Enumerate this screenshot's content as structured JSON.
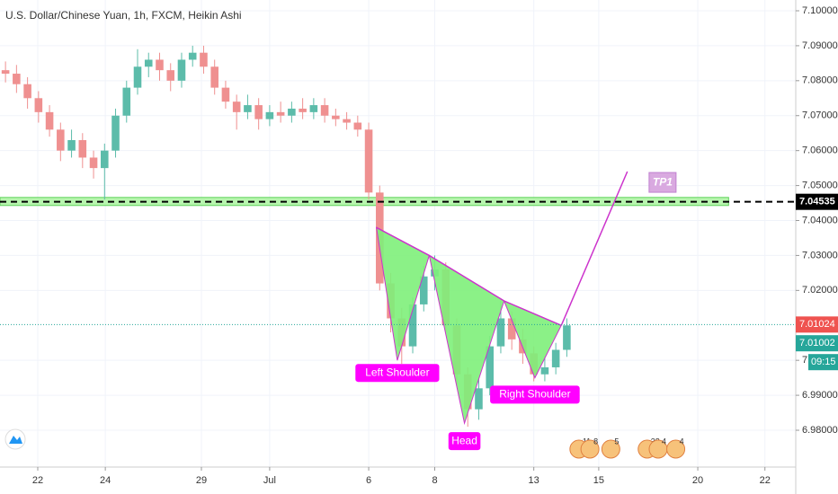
{
  "chart_data": {
    "type": "candlestick",
    "title": "U.S. Dollar/Chinese Yuan, 1h, FXCM, Heikin Ashi",
    "up_color": "#5cbcaa",
    "down_color": "#ef9090",
    "grid": true,
    "xlim": [
      0,
      72.3
    ],
    "xticks": [
      {
        "value": 3.43,
        "label": "22"
      },
      {
        "value": 9.57,
        "label": "24"
      },
      {
        "value": 18.3,
        "label": "29"
      },
      {
        "value": 24.5,
        "label": "Jul"
      },
      {
        "value": 33.5,
        "label": "6"
      },
      {
        "value": 39.5,
        "label": "8"
      },
      {
        "value": 48.5,
        "label": "13"
      },
      {
        "value": 54.4,
        "label": "15"
      },
      {
        "value": 63.4,
        "label": "20"
      },
      {
        "value": 69.5,
        "label": "22"
      }
    ],
    "ylim": [
      6.96947,
      7.10308
    ],
    "yticks": [
      {
        "value": 7.1,
        "label": "7.10000"
      },
      {
        "value": 7.09,
        "label": "7.09000"
      },
      {
        "value": 7.08,
        "label": "7.08000"
      },
      {
        "value": 7.07,
        "label": "7.07000"
      },
      {
        "value": 7.06,
        "label": "7.06000"
      },
      {
        "value": 7.05,
        "label": "7.05000"
      },
      {
        "value": 7.04,
        "label": "7.04000"
      },
      {
        "value": 7.03,
        "label": "7.03000"
      },
      {
        "value": 7.02,
        "label": "7.02000"
      },
      {
        "value": 7.0,
        "label": "7.00000"
      },
      {
        "value": 6.99,
        "label": "6.99000"
      },
      {
        "value": 6.98,
        "label": "6.98000"
      }
    ],
    "ohlc": [
      [
        7.083,
        7.0855,
        7.0795,
        7.082
      ],
      [
        7.082,
        7.0845,
        7.0765,
        7.079
      ],
      [
        7.079,
        7.081,
        7.072,
        7.075
      ],
      [
        7.075,
        7.077,
        7.068,
        7.071
      ],
      [
        7.071,
        7.073,
        7.064,
        7.066
      ],
      [
        7.066,
        7.068,
        7.057,
        7.06
      ],
      [
        7.06,
        7.066,
        7.058,
        7.063
      ],
      [
        7.063,
        7.065,
        7.055,
        7.058
      ],
      [
        7.058,
        7.06,
        7.052,
        7.055
      ],
      [
        7.055,
        7.062,
        7.046,
        7.06
      ],
      [
        7.06,
        7.072,
        7.058,
        7.07
      ],
      [
        7.07,
        7.08,
        7.068,
        7.078
      ],
      [
        7.078,
        7.089,
        7.076,
        7.084
      ],
      [
        7.084,
        7.088,
        7.081,
        7.086
      ],
      [
        7.086,
        7.088,
        7.08,
        7.083
      ],
      [
        7.083,
        7.085,
        7.077,
        7.08
      ],
      [
        7.08,
        7.088,
        7.078,
        7.086
      ],
      [
        7.086,
        7.09,
        7.084,
        7.088
      ],
      [
        7.088,
        7.09,
        7.082,
        7.084
      ],
      [
        7.084,
        7.086,
        7.076,
        7.078
      ],
      [
        7.078,
        7.08,
        7.072,
        7.074
      ],
      [
        7.074,
        7.076,
        7.066,
        7.071
      ],
      [
        7.071,
        7.076,
        7.069,
        7.073
      ],
      [
        7.073,
        7.075,
        7.066,
        7.069
      ],
      [
        7.069,
        7.073,
        7.067,
        7.071
      ],
      [
        7.071,
        7.074,
        7.068,
        7.07
      ],
      [
        7.07,
        7.074,
        7.068,
        7.072
      ],
      [
        7.072,
        7.075,
        7.069,
        7.071
      ],
      [
        7.071,
        7.075,
        7.069,
        7.073
      ],
      [
        7.073,
        7.075,
        7.068,
        7.07
      ],
      [
        7.07,
        7.072,
        7.067,
        7.069
      ],
      [
        7.069,
        7.071,
        7.066,
        7.068
      ],
      [
        7.068,
        7.07,
        7.064,
        7.066
      ],
      [
        7.066,
        7.068,
        7.046,
        7.048
      ],
      [
        7.048,
        7.05,
        7.02,
        7.022
      ],
      [
        7.022,
        7.025,
        7.008,
        7.012
      ],
      [
        7.012,
        7.015,
        6.999,
        7.004
      ],
      [
        7.004,
        7.018,
        7.002,
        7.016
      ],
      [
        7.016,
        7.027,
        7.014,
        7.024
      ],
      [
        7.024,
        7.03,
        7.02,
        7.026
      ],
      [
        7.026,
        7.028,
        7.008,
        7.01
      ],
      [
        7.01,
        7.012,
        6.993,
        6.996
      ],
      [
        6.996,
        6.998,
        6.981,
        6.986
      ],
      [
        6.986,
        6.995,
        6.983,
        6.992
      ],
      [
        6.992,
        7.007,
        6.99,
        7.004
      ],
      [
        7.004,
        7.017,
        7.002,
        7.012
      ],
      [
        7.012,
        7.014,
        7.003,
        7.006
      ],
      [
        7.006,
        7.009,
        6.999,
        7.002
      ],
      [
        7.002,
        7.004,
        6.994,
        6.996
      ],
      [
        6.996,
        7.001,
        6.994,
        6.998
      ],
      [
        6.998,
        7.005,
        6.996,
        7.003
      ],
      [
        7.003,
        7.012,
        7.001,
        7.01
      ]
    ],
    "level": {
      "value": 7.04535,
      "label": "7.04535",
      "zone": [
        7.0443,
        7.0466
      ],
      "zone_end": 66.2,
      "color": "#000000",
      "zone_color": "#a5f29a"
    },
    "last_price": {
      "value": 7.01024,
      "label": "7.01024",
      "color": "#ef5350"
    },
    "bid": {
      "value": 7.01002,
      "label": "7.01002",
      "color": "#26a69a"
    },
    "countdown": "09:15",
    "pattern": {
      "color": "#cc33cc",
      "fill": "#7ef07a",
      "legs": [
        {
          "x": [
            34.2,
            36.1,
            39.0
          ],
          "y": [
            7.038,
            7.0,
            7.03
          ]
        },
        {
          "x": [
            39.0,
            42.2,
            45.8
          ],
          "y": [
            7.03,
            6.982,
            7.017
          ]
        },
        {
          "x": [
            45.8,
            48.6,
            51.0
          ],
          "y": [
            7.017,
            6.995,
            7.01
          ]
        }
      ],
      "neckline": {
        "x": [
          34.2,
          39.0,
          45.8,
          51.0
        ],
        "y": [
          7.038,
          7.03,
          7.017,
          7.01
        ]
      },
      "projection": {
        "x": [
          51.0,
          57.0
        ],
        "y": [
          7.01,
          7.054
        ]
      },
      "labels": [
        {
          "text": "Left Shoulder",
          "x": 36.1,
          "y": 6.9964
        },
        {
          "text": "Head",
          "x": 42.2,
          "y": 6.9769
        },
        {
          "text": "Right Shoulder",
          "x": 48.6,
          "y": 6.9902
        }
      ],
      "target": {
        "text": "TP1",
        "x": 60.2,
        "y": 7.0509
      }
    },
    "events": [
      {
        "x": 52.6,
        "label": "11"
      },
      {
        "x": 53.6,
        "label": "8"
      },
      {
        "x": 55.5,
        "label": "5"
      },
      {
        "x": 58.8,
        "label": "38"
      },
      {
        "x": 59.8,
        "label": "4"
      },
      {
        "x": 61.4,
        "label": "4"
      }
    ]
  }
}
